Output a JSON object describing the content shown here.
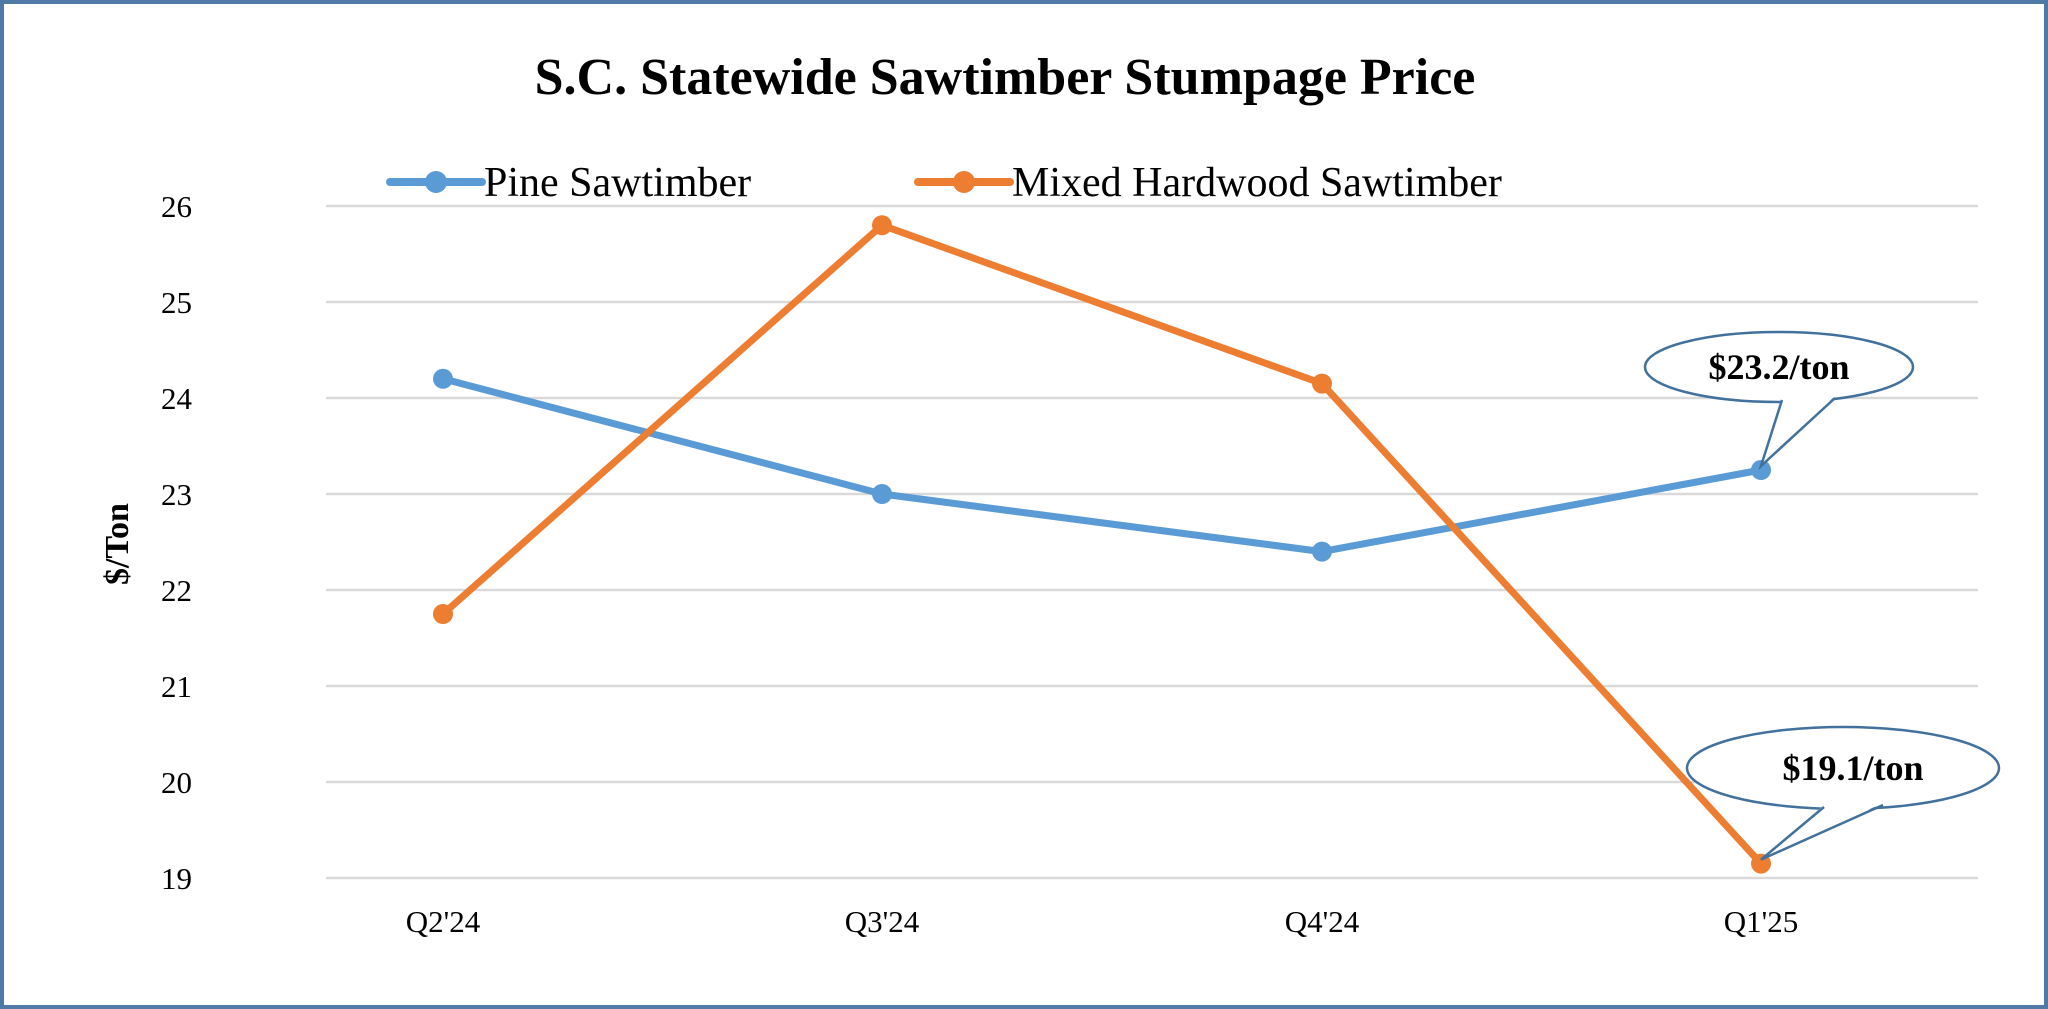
{
  "chart_data": {
    "type": "line",
    "title": "S.C. Statewide Sawtimber Stumpage Price",
    "xlabel": "",
    "ylabel": "$/Ton",
    "categories": [
      "Q2'24",
      "Q3'24",
      "Q4'24",
      "Q1'25"
    ],
    "ylim": [
      19,
      26
    ],
    "yticks": [
      19,
      20,
      21,
      22,
      23,
      24,
      25,
      26
    ],
    "grid": true,
    "legend_position": "top",
    "series": [
      {
        "name": "Pine Sawtimber",
        "color": "#5b9bd5",
        "values": [
          24.2,
          23.0,
          22.4,
          23.25
        ]
      },
      {
        "name": "Mixed Hardwood Sawtimber",
        "color": "#ed7d31",
        "values": [
          21.75,
          25.8,
          24.15,
          19.15
        ]
      }
    ],
    "annotations": [
      {
        "text": "$23.2/ton",
        "series": 0,
        "category": "Q1'25"
      },
      {
        "text": "$19.1/ton",
        "series": 1,
        "category": "Q1'25"
      }
    ],
    "frame_color": "#4f79a7"
  }
}
